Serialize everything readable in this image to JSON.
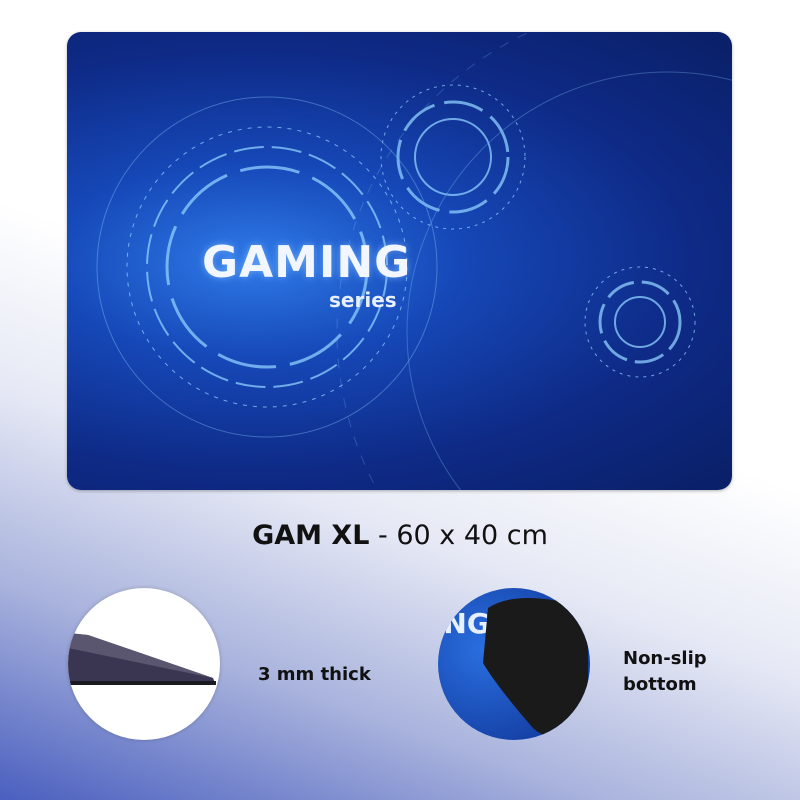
{
  "product_image": {
    "logo_text": "GAMING",
    "logo_subtext": "series"
  },
  "title": {
    "model": "GAM XL",
    "separator": " - ",
    "size": "60 x 40 cm"
  },
  "features": [
    {
      "label": "3 mm thick"
    },
    {
      "label_line1": "Non-slip",
      "label_line2": "bottom"
    }
  ],
  "colors": {
    "pad_blue": "#1648b8",
    "accent_light": "#7fc4ff",
    "rubber_black": "#1a1a1a"
  }
}
